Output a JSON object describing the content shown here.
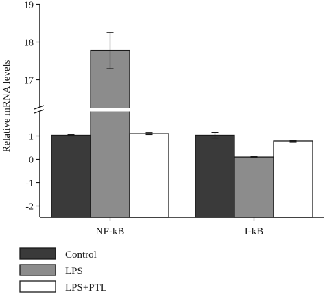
{
  "chart_data": {
    "type": "bar",
    "ylabel": "Relative mRNA levels",
    "categories": [
      "NF-kB",
      "I-kB"
    ],
    "series": [
      {
        "name": "Control",
        "values": [
          1.03,
          1.03
        ],
        "errors": [
          0.03,
          0.12
        ],
        "color": "#3a3a3a"
      },
      {
        "name": "LPS",
        "values": [
          17.78,
          0.1
        ],
        "errors": [
          0.48,
          0.02
        ],
        "color": "#8c8c8c"
      },
      {
        "name": "LPS+PTL",
        "values": [
          1.1,
          0.78
        ],
        "errors": [
          0.04,
          0.03
        ],
        "color": "#ffffff"
      }
    ],
    "lower_ticks": [
      -2,
      -1,
      0,
      1
    ],
    "upper_ticks": [
      17,
      18,
      19
    ],
    "axis_break": true,
    "legend_position": "bottom-left"
  }
}
